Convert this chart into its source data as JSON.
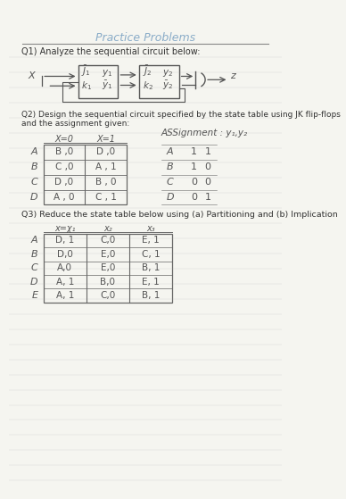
{
  "title": "Practice Problems",
  "title_color": "#8aacc8",
  "bg_color": "#f5f5f0",
  "q1_text": "Q1) Analyze the sequential circuit below:",
  "q2_text": "Q2) Design the sequential circuit specified by the state table using JK flip-flops and the assignment given:",
  "q3_text": "Q3) Reduce the state table below using (a) Partitioning and (b) Implication",
  "q2_table": {
    "col_headers": [
      "X=0",
      "X=1"
    ],
    "row_headers": [
      "A",
      "B",
      "C",
      "D"
    ],
    "cells": [
      [
        "B ,0",
        "D ,0"
      ],
      [
        "C ,0",
        "A , 1"
      ],
      [
        "D ,0",
        "B , 0"
      ],
      [
        "A , 0",
        "C , 1"
      ]
    ]
  },
  "q2_assignment_label": "ASSignment : y₁,y₂",
  "q2_assignment_states": [
    "A",
    "B",
    "C",
    "D"
  ],
  "q2_assignment_vals": [
    [
      "1",
      "1"
    ],
    [
      "1",
      "0"
    ],
    [
      "0",
      "0"
    ],
    [
      "0",
      "1"
    ]
  ],
  "q3_table": {
    "col_headers": [
      "x=χ₁",
      "x₂",
      "x₃"
    ],
    "row_headers": [
      "A",
      "B",
      "C",
      "D",
      "E"
    ],
    "cells": [
      [
        "D, 1",
        "C,0",
        "E, 1"
      ],
      [
        "D,0",
        "E,0",
        "C, 1"
      ],
      [
        "A,0",
        "E,0",
        "B, 1"
      ],
      [
        "A, 1",
        "B,0",
        "E, 1"
      ],
      [
        "A, 1",
        "C,0",
        "B, 1"
      ]
    ]
  },
  "line_color": "#444444",
  "text_color": "#333333",
  "handwritten_color": "#555555",
  "table_line_color": "#666666",
  "rule_line_color": "#aaaaaa"
}
